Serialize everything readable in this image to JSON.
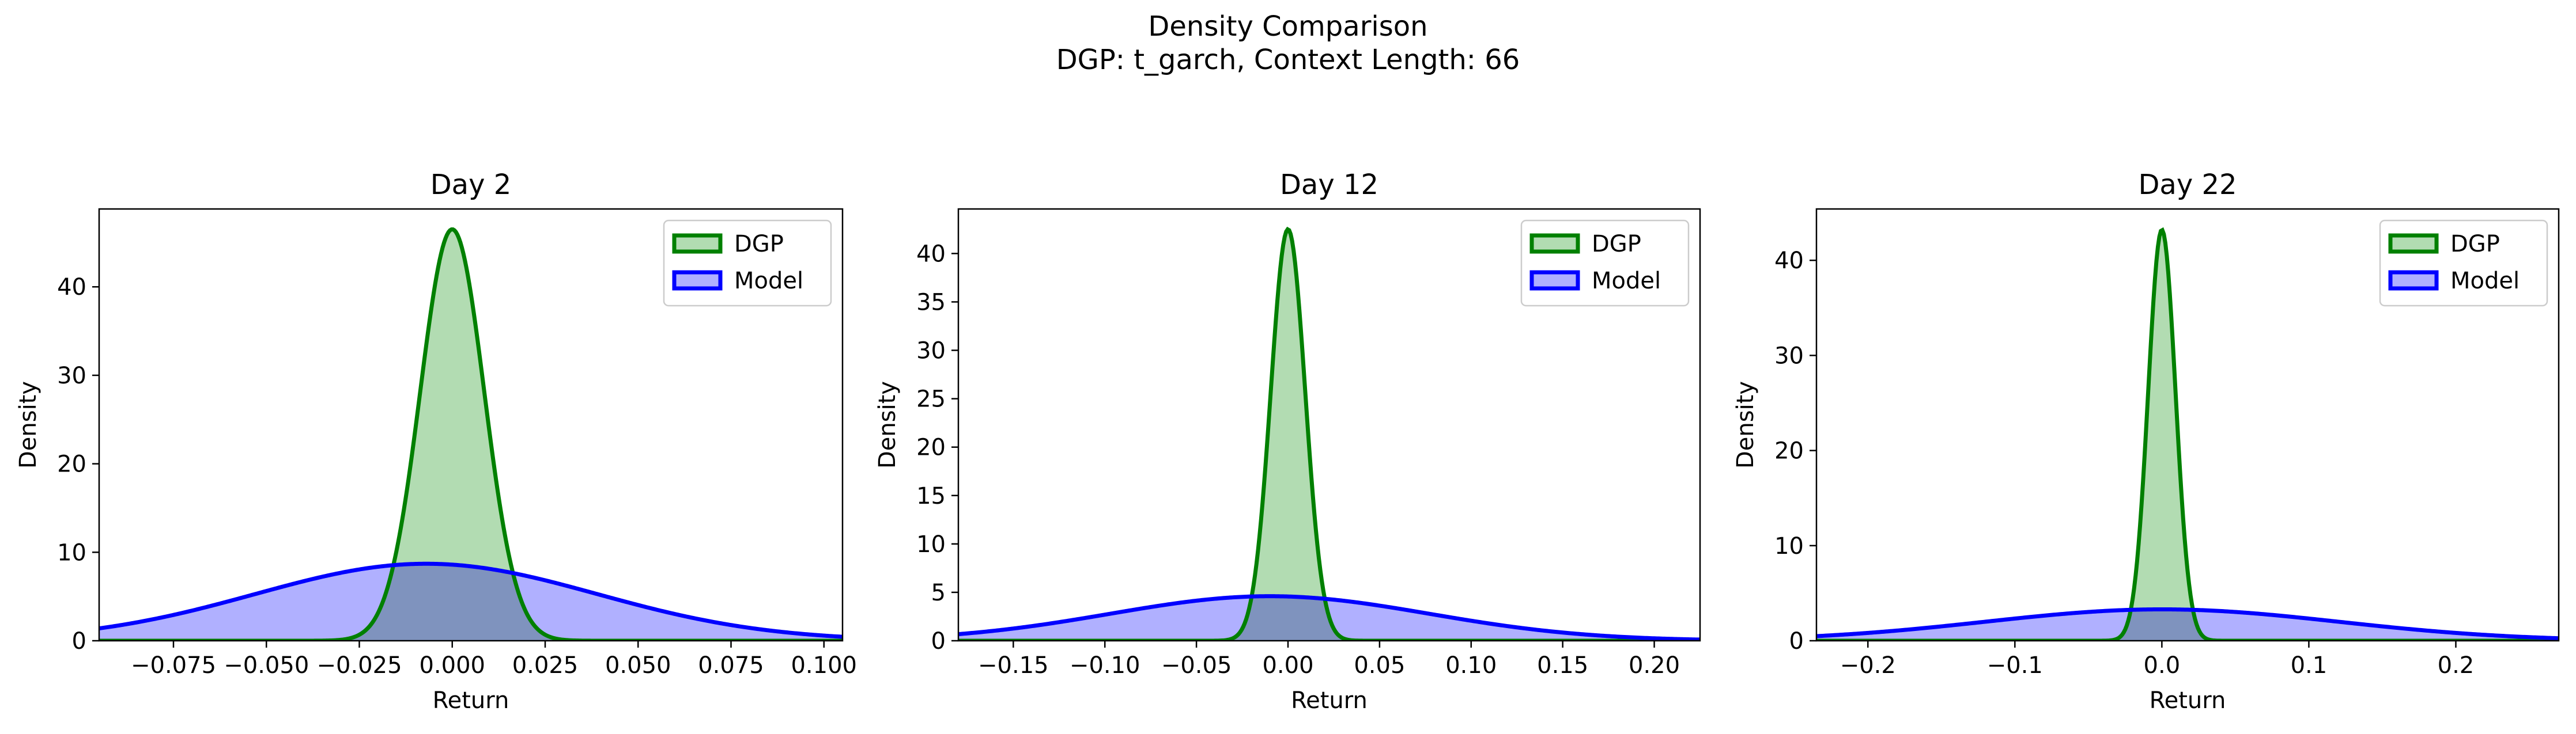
{
  "figure": {
    "title_line1": "Density Comparison",
    "title_line2": "DGP: t_garch, Context Length: 66"
  },
  "colors": {
    "dgp_line": "#008000",
    "dgp_fill": "#b2dcb2",
    "model_line": "#0000ff",
    "model_fill": "#b0b0ff",
    "overlap_fill": "#7f93be"
  },
  "chart_data": [
    {
      "type": "area",
      "title": "Day 2",
      "xlabel": "Return",
      "ylabel": "Density",
      "xlim": [
        -0.095,
        0.105
      ],
      "ylim": [
        0,
        48.8
      ],
      "xticks": [
        -0.075,
        -0.05,
        -0.025,
        0.0,
        0.025,
        0.05,
        0.075,
        0.1
      ],
      "xtick_labels": [
        "−0.075",
        "−0.050",
        "−0.025",
        "0.000",
        "0.025",
        "0.050",
        "0.075",
        "0.100"
      ],
      "yticks": [
        0,
        10,
        20,
        30,
        40
      ],
      "ytick_labels": [
        "0",
        "10",
        "20",
        "30",
        "40"
      ],
      "legend": {
        "position": "top-right",
        "entries": [
          "DGP",
          "Model"
        ]
      },
      "series": [
        {
          "name": "DGP",
          "distribution": "normal",
          "mean": 0.0,
          "std": 0.0086,
          "peak_density": 46.5
        },
        {
          "name": "Model",
          "distribution": "normal",
          "mean": -0.007,
          "std": 0.046,
          "peak_density": 8.7
        }
      ]
    },
    {
      "type": "area",
      "title": "Day 12",
      "xlabel": "Return",
      "ylabel": "Density",
      "xlim": [
        -0.18,
        0.225
      ],
      "ylim": [
        0,
        44.6
      ],
      "xticks": [
        -0.15,
        -0.1,
        -0.05,
        0.0,
        0.05,
        0.1,
        0.15,
        0.2
      ],
      "xtick_labels": [
        "−0.15",
        "−0.10",
        "−0.05",
        "0.00",
        "0.05",
        "0.10",
        "0.15",
        "0.20"
      ],
      "yticks": [
        0,
        5,
        10,
        15,
        20,
        25,
        30,
        35,
        40
      ],
      "ytick_labels": [
        "0",
        "5",
        "10",
        "15",
        "20",
        "25",
        "30",
        "35",
        "40"
      ],
      "legend": {
        "position": "top-right",
        "entries": [
          "DGP",
          "Model"
        ]
      },
      "series": [
        {
          "name": "DGP",
          "distribution": "normal",
          "mean": 0.0,
          "std": 0.0094,
          "peak_density": 42.5
        },
        {
          "name": "Model",
          "distribution": "normal",
          "mean": -0.01,
          "std": 0.087,
          "peak_density": 4.6
        }
      ]
    },
    {
      "type": "area",
      "title": "Day 22",
      "xlabel": "Return",
      "ylabel": "Density",
      "xlim": [
        -0.235,
        0.27
      ],
      "ylim": [
        0,
        45.4
      ],
      "xticks": [
        -0.2,
        -0.1,
        0.0,
        0.1,
        0.2
      ],
      "xtick_labels": [
        "−0.2",
        "−0.1",
        "0.0",
        "0.1",
        "0.2"
      ],
      "yticks": [
        0,
        10,
        20,
        30,
        40
      ],
      "ytick_labels": [
        "0",
        "10",
        "20",
        "30",
        "40"
      ],
      "legend": {
        "position": "top-right",
        "entries": [
          "DGP",
          "Model"
        ]
      },
      "series": [
        {
          "name": "DGP",
          "distribution": "normal",
          "mean": 0.0,
          "std": 0.0093,
          "peak_density": 43.2
        },
        {
          "name": "Model",
          "distribution": "normal",
          "mean": 0.0,
          "std": 0.12,
          "peak_density": 3.3
        }
      ]
    }
  ]
}
